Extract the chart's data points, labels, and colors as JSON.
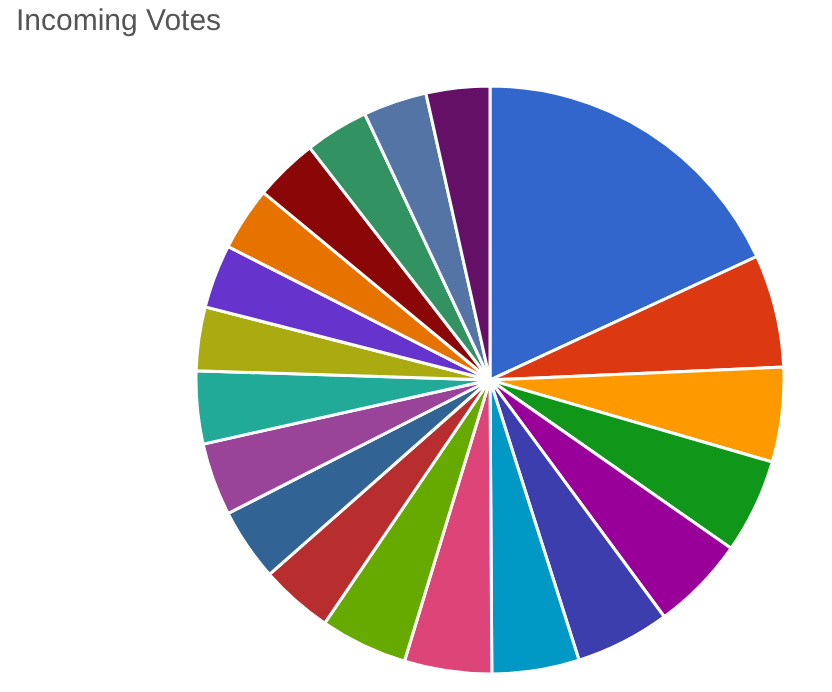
{
  "chart_data": {
    "type": "pie",
    "title": "Incoming Votes",
    "categories": [
      null,
      null,
      null,
      null,
      null,
      null,
      null,
      null,
      null,
      null,
      null,
      null,
      null,
      null,
      null,
      null,
      null,
      null,
      null,
      null
    ],
    "values": [
      18.1,
      6.2,
      5.2,
      5.2,
      5.2,
      5.2,
      4.8,
      4.8,
      4.8,
      4,
      4,
      4,
      4,
      3.5,
      3.5,
      3.5,
      3.5,
      3.5,
      3.5,
      3.5
    ],
    "colors": [
      "#3366cc",
      "#dc3912",
      "#ff9900",
      "#109618",
      "#990099",
      "#3b3eac",
      "#0099c6",
      "#dd4477",
      "#66aa00",
      "#b82e2e",
      "#316395",
      "#994499",
      "#22aa99",
      "#aaaa11",
      "#6633cc",
      "#e67300",
      "#8b0707",
      "#329262",
      "#5574a6",
      "#651067"
    ],
    "legend": false
  }
}
